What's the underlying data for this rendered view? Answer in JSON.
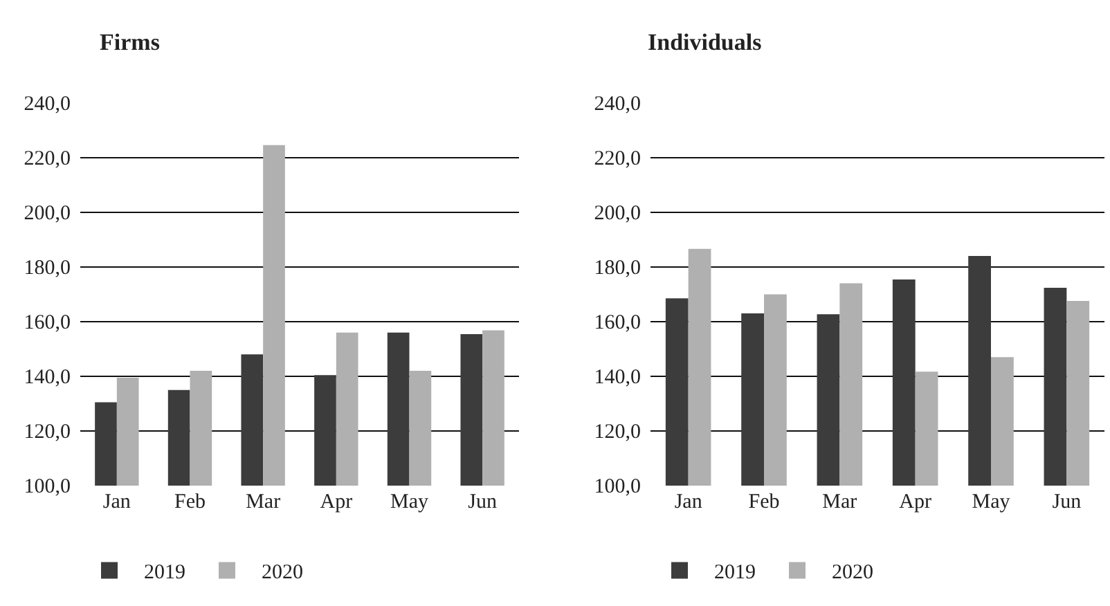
{
  "chart_data": [
    {
      "type": "bar",
      "title": "Firms",
      "categories": [
        "Jan",
        "Feb",
        "Mar",
        "Apr",
        "May",
        "Jun"
      ],
      "series": [
        {
          "name": "2019",
          "color": "#3c3c3c",
          "values": [
            130.5,
            135,
            148,
            140.4,
            156,
            155.4
          ]
        },
        {
          "name": "2020",
          "color": "#b0b0b0",
          "values": [
            139.5,
            142,
            224.6,
            156,
            142,
            156.8
          ]
        }
      ],
      "ylim": [
        100,
        240
      ],
      "yticks": [
        {
          "value": 100,
          "label": "100,0"
        },
        {
          "value": 120,
          "label": "120,0"
        },
        {
          "value": 140,
          "label": "140,0"
        },
        {
          "value": 160,
          "label": "160,0"
        },
        {
          "value": 180,
          "label": "180,0"
        },
        {
          "value": 200,
          "label": "200,0"
        },
        {
          "value": 220,
          "label": "220,0"
        },
        {
          "value": 240,
          "label": "240,0"
        }
      ],
      "grid": "y",
      "legend": "bottom left"
    },
    {
      "type": "bar",
      "title": "Individuals",
      "categories": [
        "Jan",
        "Feb",
        "Mar",
        "Apr",
        "May",
        "Jun"
      ],
      "series": [
        {
          "name": "2019",
          "color": "#3c3c3c",
          "values": [
            168.5,
            163,
            162.7,
            175.4,
            184,
            172.4
          ]
        },
        {
          "name": "2020",
          "color": "#b0b0b0",
          "values": [
            186.6,
            170,
            174,
            141.7,
            147,
            167.6
          ]
        }
      ],
      "ylim": [
        100,
        240
      ],
      "yticks": [
        {
          "value": 100,
          "label": "100,0"
        },
        {
          "value": 120,
          "label": "120,0"
        },
        {
          "value": 140,
          "label": "140,0"
        },
        {
          "value": 160,
          "label": "160,0"
        },
        {
          "value": 180,
          "label": "180,0"
        },
        {
          "value": 200,
          "label": "200,0"
        },
        {
          "value": 220,
          "label": "220,0"
        },
        {
          "value": 240,
          "label": "240,0"
        }
      ],
      "grid": "y",
      "legend": "bottom left"
    }
  ]
}
